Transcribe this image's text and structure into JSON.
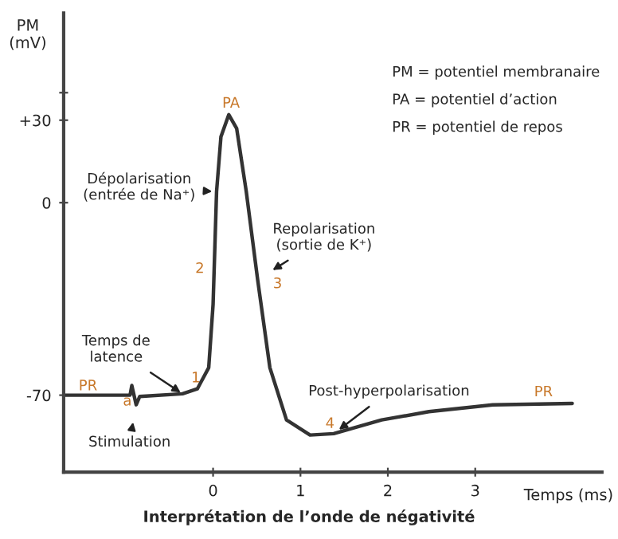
{
  "chart_data": {
    "type": "line",
    "title": "Interprétation de l’onde de négativité",
    "xlabel": "Temps (ms)",
    "ylabel": "PM\n(mV)",
    "x": [
      -1.71,
      -0.95,
      -0.93,
      -0.88,
      -0.84,
      -0.35,
      -0.18,
      -0.05,
      0.0,
      0.04,
      0.09,
      0.18,
      0.27,
      0.38,
      0.51,
      0.65,
      0.84,
      1.11,
      1.38,
      1.93,
      2.47,
      3.2,
      4.11
    ],
    "series": [
      {
        "color": "#333333",
        "values": [
          -70,
          -70,
          -66.5,
          -73.5,
          -70.5,
          -69.5,
          -67.7,
          -60,
          -37,
          4,
          24,
          32,
          27,
          4,
          -28,
          -60,
          -79,
          -84.5,
          -84,
          -79,
          -76,
          -73.5,
          -73
        ]
      }
    ],
    "xlim": [
      -1.71,
      4.45
    ],
    "ylim": [
      -98,
      69
    ],
    "xticks": [
      0,
      1,
      2,
      3
    ],
    "yticks": [
      {
        "value": 30,
        "label": "+30"
      },
      0,
      -70,
      {
        "value": 40,
        "label": null
      }
    ],
    "grid": false,
    "legend": false,
    "annotations": [
      "PM = potentiel membranaire",
      "PA = potentiel d’action",
      "PR = potentiel de repos",
      {
        "text": "Dépolarisation\n(entrée de Na⁺)",
        "x": 0.04,
        "y": 4
      },
      {
        "text": "Repolarisation\n(sortie de K⁺)",
        "x": 0.51,
        "y": -28
      },
      {
        "text": "Temps de\nlatence",
        "x": -0.35,
        "y": -69.5
      },
      {
        "text": "Stimulation",
        "x": -0.88,
        "y": -73.5
      },
      {
        "text": "Post-hyperpolarisation",
        "x": 1.38,
        "y": -84
      },
      {
        "text": "PA",
        "x": 0.18,
        "y": 32
      },
      {
        "text": "1",
        "x": -0.35,
        "y": -69.5
      },
      {
        "text": "2",
        "x": 0.0,
        "y": -37
      },
      {
        "text": "3",
        "x": 0.51,
        "y": -28
      },
      {
        "text": "4",
        "x": 1.11,
        "y": -84.5
      },
      {
        "text": "a",
        "x": -0.88,
        "y": -73.5
      },
      {
        "text": "PR",
        "x": -1.71,
        "y": -70
      },
      {
        "text": "PR",
        "x": 4.11,
        "y": -73
      }
    ]
  }
}
